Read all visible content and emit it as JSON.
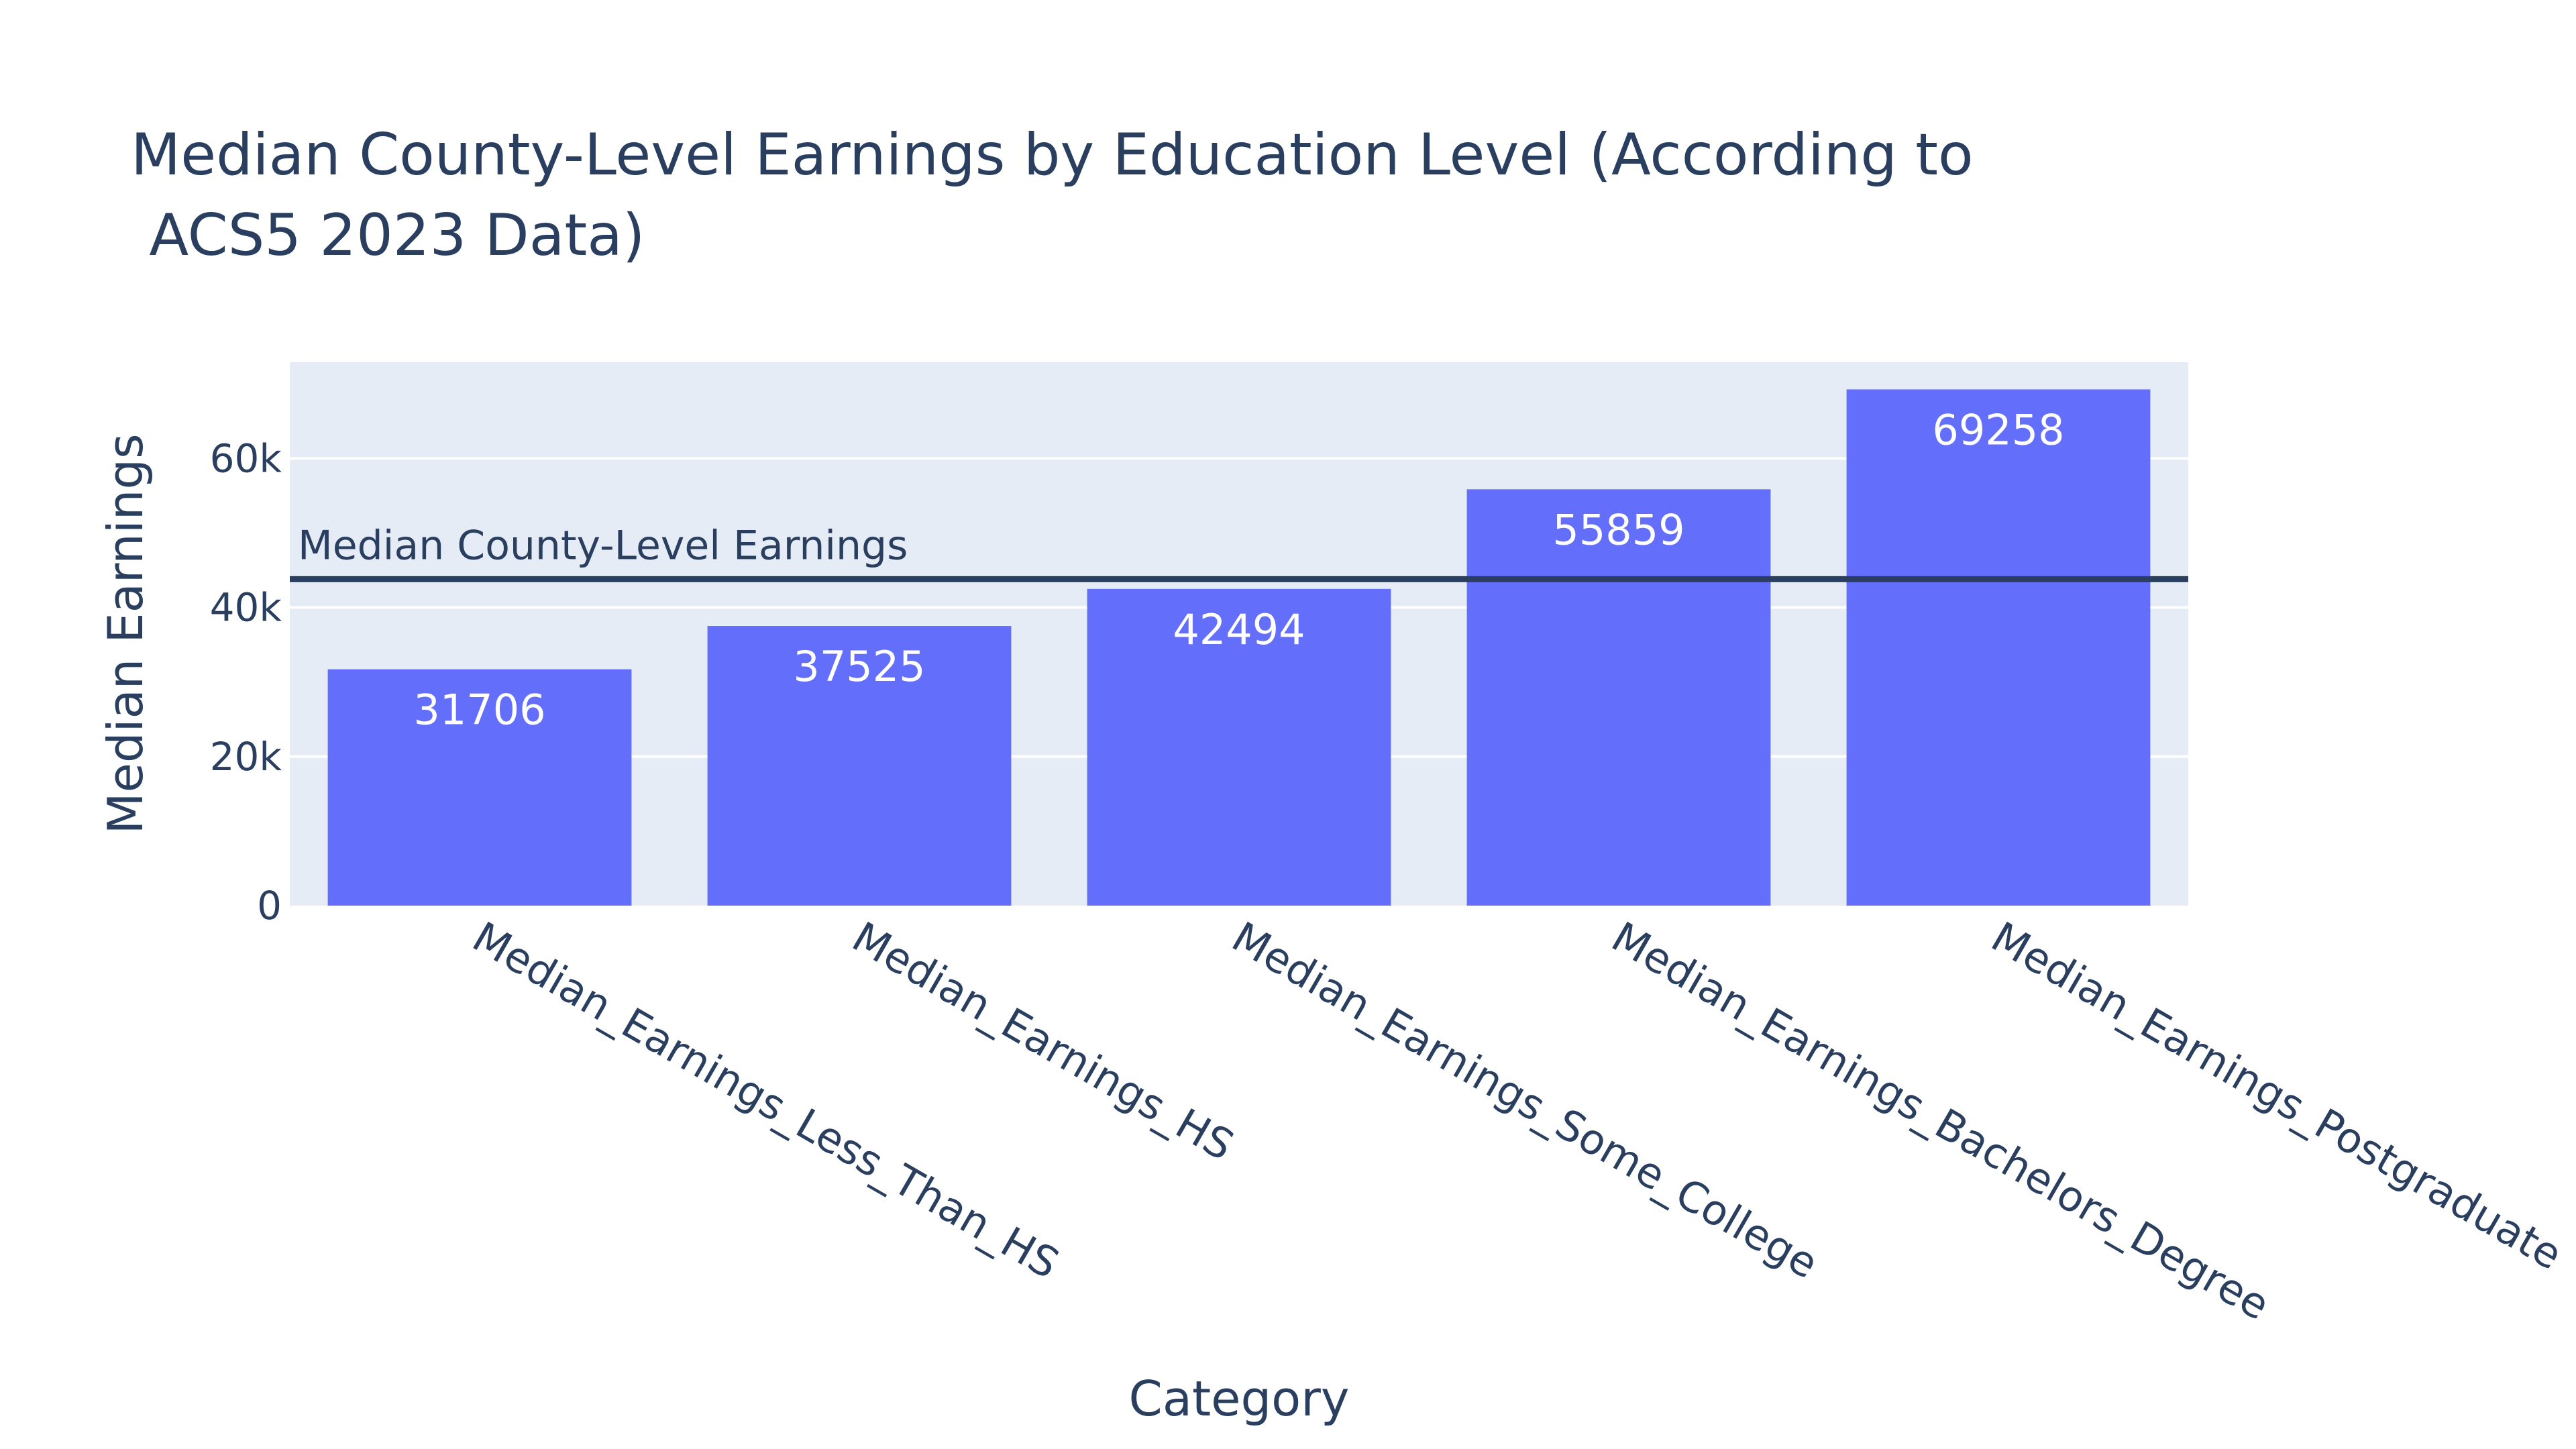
{
  "colors": {
    "background": "#ffffff",
    "plot_background": "#e5ecf6",
    "grid": "#ffffff",
    "bar": "#636efa",
    "text": "#2a3f5f",
    "bar_label": "#ffffff",
    "reference_line": "#2a3f5f"
  },
  "chart_data": {
    "type": "bar",
    "title_line1": "Median County-Level Earnings by Education Level (According to",
    "title_line2": " ACS5 2023 Data)",
    "xlabel": "Category",
    "ylabel": "Median Earnings",
    "categories": [
      "Median_Earnings_Less_Than_HS",
      "Median_Earnings_HS",
      "Median_Earnings_Some_College",
      "Median_Earnings_Bachelors_Degree",
      "Median_Earnings_Postgraduate"
    ],
    "values": [
      31706,
      37525,
      42494,
      55859,
      69258
    ],
    "ylim": [
      0,
      72900
    ],
    "yticks": [
      {
        "value": 0,
        "label": "0"
      },
      {
        "value": 20000,
        "label": "20k"
      },
      {
        "value": 40000,
        "label": "40k"
      },
      {
        "value": 60000,
        "label": "60k"
      }
    ],
    "grid": true,
    "reference_line": {
      "value": 43800,
      "label": "Median County-Level Earnings"
    }
  }
}
